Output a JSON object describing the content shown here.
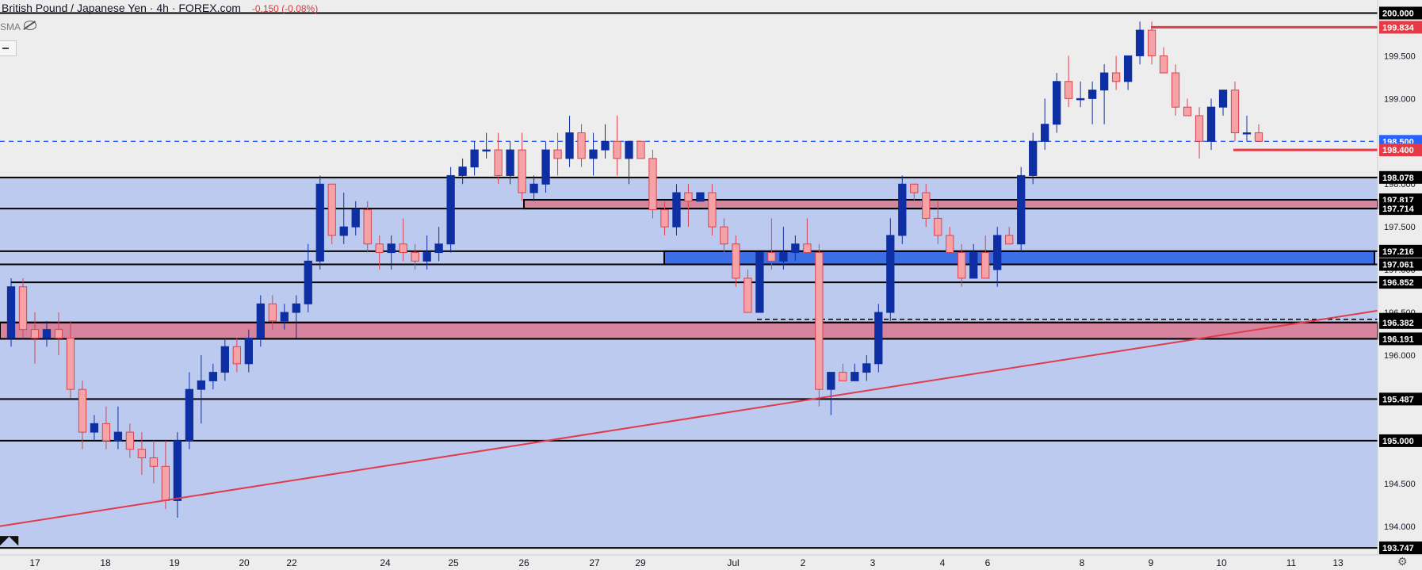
{
  "header": {
    "title": "British Pound / Japanese Yen · 4h · FOREX.com",
    "change": "-0.150 (-0.08%)"
  },
  "indicator": {
    "label": "SMA"
  },
  "colors": {
    "background": "#ededed",
    "zone_fill": "#bccaef",
    "bull_candle": "#0e2fa3",
    "bear_candle": "#f6a3a8",
    "trendline": "#e23b4a",
    "red_zone": "#e06c84",
    "blue_zone": "#3c6fe6",
    "price_box_blue": "#2962ff",
    "price_box_red": "#e63946"
  },
  "chart_data": {
    "type": "candlestick",
    "y_axis_ticks": [
      "200.000",
      "199.500",
      "199.000",
      "198.500",
      "198.000",
      "197.500",
      "197.000",
      "196.500",
      "196.000",
      "195.500",
      "195.000",
      "194.500",
      "194.000"
    ],
    "x_axis_labels": [
      "17",
      "18",
      "19",
      "20",
      "22",
      "24",
      "25",
      "26",
      "27",
      "29",
      "Jul",
      "2",
      "3",
      "4",
      "6",
      "8",
      "9",
      "10",
      "11",
      "13"
    ],
    "y_range": [
      193.72,
      200.06
    ],
    "levels": [
      {
        "price": "200.000",
        "color": "#000000"
      },
      {
        "price": "199.834",
        "color": "#e63946",
        "style": "resistance"
      },
      {
        "price": "198.500",
        "color": "#2962ff",
        "style": "current"
      },
      {
        "price": "198.400",
        "color": "#e63946",
        "style": "support"
      },
      {
        "price": "198.078",
        "color": "#000000"
      },
      {
        "price": "197.817",
        "color": "#000000"
      },
      {
        "price": "197.714",
        "color": "#000000"
      },
      {
        "price": "197.216",
        "color": "#000000"
      },
      {
        "price": "197.061",
        "color": "#000000"
      },
      {
        "price": "196.852",
        "color": "#000000"
      },
      {
        "price": "196.420",
        "color": "#000000",
        "style": "dashed"
      },
      {
        "price": "196.382",
        "color": "#000000"
      },
      {
        "price": "196.191",
        "color": "#000000"
      },
      {
        "price": "195.487",
        "color": "#000000"
      },
      {
        "price": "195.000",
        "color": "#000000"
      },
      {
        "price": "193.747",
        "color": "#000000"
      }
    ],
    "zones": [
      {
        "low": 197.714,
        "high": 197.817,
        "kind": "red"
      },
      {
        "low": 197.061,
        "high": 197.216,
        "kind": "blue"
      },
      {
        "low": 196.191,
        "high": 196.382,
        "kind": "red"
      }
    ],
    "trendline": {
      "start_price": 194.0,
      "end_price": 196.52
    },
    "candles": [
      [
        196.2,
        196.9,
        196.1,
        196.8
      ],
      [
        196.8,
        196.9,
        196.2,
        196.3
      ],
      [
        196.3,
        196.5,
        195.9,
        196.2
      ],
      [
        196.2,
        196.4,
        196.1,
        196.3
      ],
      [
        196.3,
        196.5,
        196.0,
        196.2
      ],
      [
        196.2,
        196.4,
        195.5,
        195.6
      ],
      [
        195.6,
        195.7,
        194.9,
        195.1
      ],
      [
        195.1,
        195.3,
        195.0,
        195.2
      ],
      [
        195.2,
        195.4,
        194.9,
        195.0
      ],
      [
        195.0,
        195.4,
        194.9,
        195.1
      ],
      [
        195.1,
        195.2,
        194.8,
        194.9
      ],
      [
        194.9,
        195.1,
        194.6,
        194.8
      ],
      [
        194.8,
        195.0,
        194.5,
        194.7
      ],
      [
        194.7,
        195.0,
        194.2,
        194.3
      ],
      [
        194.3,
        195.1,
        194.1,
        195.0
      ],
      [
        195.0,
        195.8,
        194.9,
        195.6
      ],
      [
        195.6,
        196.0,
        195.2,
        195.7
      ],
      [
        195.7,
        195.9,
        195.6,
        195.8
      ],
      [
        195.8,
        196.2,
        195.7,
        196.1
      ],
      [
        196.1,
        196.2,
        195.8,
        195.9
      ],
      [
        195.9,
        196.3,
        195.8,
        196.2
      ],
      [
        196.2,
        196.7,
        196.1,
        196.6
      ],
      [
        196.6,
        196.7,
        196.3,
        196.4
      ],
      [
        196.4,
        196.6,
        196.3,
        196.5
      ],
      [
        196.5,
        196.7,
        196.2,
        196.6
      ],
      [
        196.6,
        197.3,
        196.5,
        197.1
      ],
      [
        197.1,
        198.1,
        197.0,
        198.0
      ],
      [
        198.0,
        198.0,
        197.3,
        197.4
      ],
      [
        197.4,
        197.9,
        197.3,
        197.5
      ],
      [
        197.5,
        197.8,
        197.4,
        197.7
      ],
      [
        197.7,
        197.8,
        197.2,
        197.3
      ],
      [
        197.3,
        197.4,
        197.0,
        197.2
      ],
      [
        197.2,
        197.4,
        197.0,
        197.3
      ],
      [
        197.3,
        197.6,
        197.1,
        197.2
      ],
      [
        197.2,
        197.3,
        197.0,
        197.1
      ],
      [
        197.1,
        197.4,
        197.0,
        197.2
      ],
      [
        197.2,
        197.5,
        197.1,
        197.3
      ],
      [
        197.3,
        198.2,
        197.2,
        198.1
      ],
      [
        198.1,
        198.3,
        198.0,
        198.2
      ],
      [
        198.2,
        198.5,
        198.1,
        198.4
      ],
      [
        198.4,
        198.6,
        198.3,
        198.4
      ],
      [
        198.4,
        198.6,
        198.0,
        198.1
      ],
      [
        198.1,
        198.5,
        198.0,
        198.4
      ],
      [
        198.4,
        198.6,
        197.8,
        197.9
      ],
      [
        197.9,
        198.1,
        197.8,
        198.0
      ],
      [
        198.0,
        198.5,
        197.9,
        198.4
      ],
      [
        198.4,
        198.6,
        198.1,
        198.3
      ],
      [
        198.3,
        198.8,
        198.2,
        198.6
      ],
      [
        198.6,
        198.7,
        198.2,
        198.3
      ],
      [
        198.3,
        198.6,
        198.1,
        198.4
      ],
      [
        198.4,
        198.7,
        198.3,
        198.5
      ],
      [
        198.5,
        198.8,
        198.1,
        198.3
      ],
      [
        198.3,
        198.5,
        198.0,
        198.5
      ],
      [
        198.5,
        198.5,
        198.3,
        198.3
      ],
      [
        198.3,
        198.4,
        197.6,
        197.7
      ],
      [
        197.7,
        197.8,
        197.4,
        197.5
      ],
      [
        197.5,
        198.0,
        197.4,
        197.9
      ],
      [
        197.9,
        198.0,
        197.5,
        197.8
      ],
      [
        197.8,
        197.9,
        197.8,
        197.9
      ],
      [
        197.9,
        198.0,
        197.4,
        197.5
      ],
      [
        197.5,
        197.6,
        197.2,
        197.3
      ],
      [
        197.3,
        197.4,
        196.8,
        196.9
      ],
      [
        196.9,
        197.0,
        196.5,
        196.5
      ],
      [
        196.5,
        197.2,
        196.5,
        197.2
      ],
      [
        197.2,
        197.6,
        197.0,
        197.1
      ],
      [
        197.1,
        197.5,
        197.0,
        197.2
      ],
      [
        197.2,
        197.4,
        197.1,
        197.3
      ],
      [
        197.3,
        197.6,
        197.2,
        197.2
      ],
      [
        197.2,
        197.3,
        195.4,
        195.6
      ],
      [
        195.6,
        195.8,
        195.3,
        195.8
      ],
      [
        195.8,
        195.9,
        195.7,
        195.7
      ],
      [
        195.7,
        195.9,
        195.7,
        195.8
      ],
      [
        195.8,
        196.0,
        195.7,
        195.9
      ],
      [
        195.9,
        196.6,
        195.8,
        196.5
      ],
      [
        196.5,
        197.6,
        196.4,
        197.4
      ],
      [
        197.4,
        198.1,
        197.3,
        198.0
      ],
      [
        198.0,
        198.0,
        197.8,
        197.9
      ],
      [
        197.9,
        198.0,
        197.5,
        197.6
      ],
      [
        197.6,
        197.8,
        197.3,
        197.4
      ],
      [
        197.4,
        197.5,
        197.2,
        197.2
      ],
      [
        197.2,
        197.3,
        196.8,
        196.9
      ],
      [
        196.9,
        197.3,
        196.9,
        197.2
      ],
      [
        197.2,
        197.4,
        196.9,
        196.9
      ],
      [
        197.0,
        197.5,
        196.8,
        197.4
      ],
      [
        197.4,
        197.5,
        197.3,
        197.3
      ],
      [
        197.3,
        198.2,
        197.2,
        198.1
      ],
      [
        198.1,
        198.6,
        198.0,
        198.5
      ],
      [
        198.5,
        199.0,
        198.4,
        198.7
      ],
      [
        198.7,
        199.3,
        198.6,
        199.2
      ],
      [
        199.2,
        199.5,
        198.9,
        199.0
      ],
      [
        199.0,
        199.2,
        198.9,
        199.0
      ],
      [
        199.0,
        199.2,
        198.7,
        199.1
      ],
      [
        199.1,
        199.4,
        198.7,
        199.3
      ],
      [
        199.3,
        199.5,
        199.1,
        199.2
      ],
      [
        199.2,
        199.5,
        199.1,
        199.5
      ],
      [
        199.5,
        199.9,
        199.4,
        199.8
      ],
      [
        199.8,
        199.9,
        199.4,
        199.5
      ],
      [
        199.5,
        199.6,
        199.3,
        199.3
      ],
      [
        199.3,
        199.4,
        198.8,
        198.9
      ],
      [
        198.9,
        199.0,
        198.8,
        198.8
      ],
      [
        198.8,
        198.9,
        198.3,
        198.5
      ],
      [
        198.5,
        199.0,
        198.4,
        198.9
      ],
      [
        198.9,
        199.1,
        198.8,
        199.1
      ],
      [
        199.1,
        199.2,
        198.5,
        198.6
      ],
      [
        198.6,
        198.8,
        198.5,
        198.6
      ],
      [
        198.6,
        198.7,
        198.5,
        198.5
      ]
    ]
  }
}
